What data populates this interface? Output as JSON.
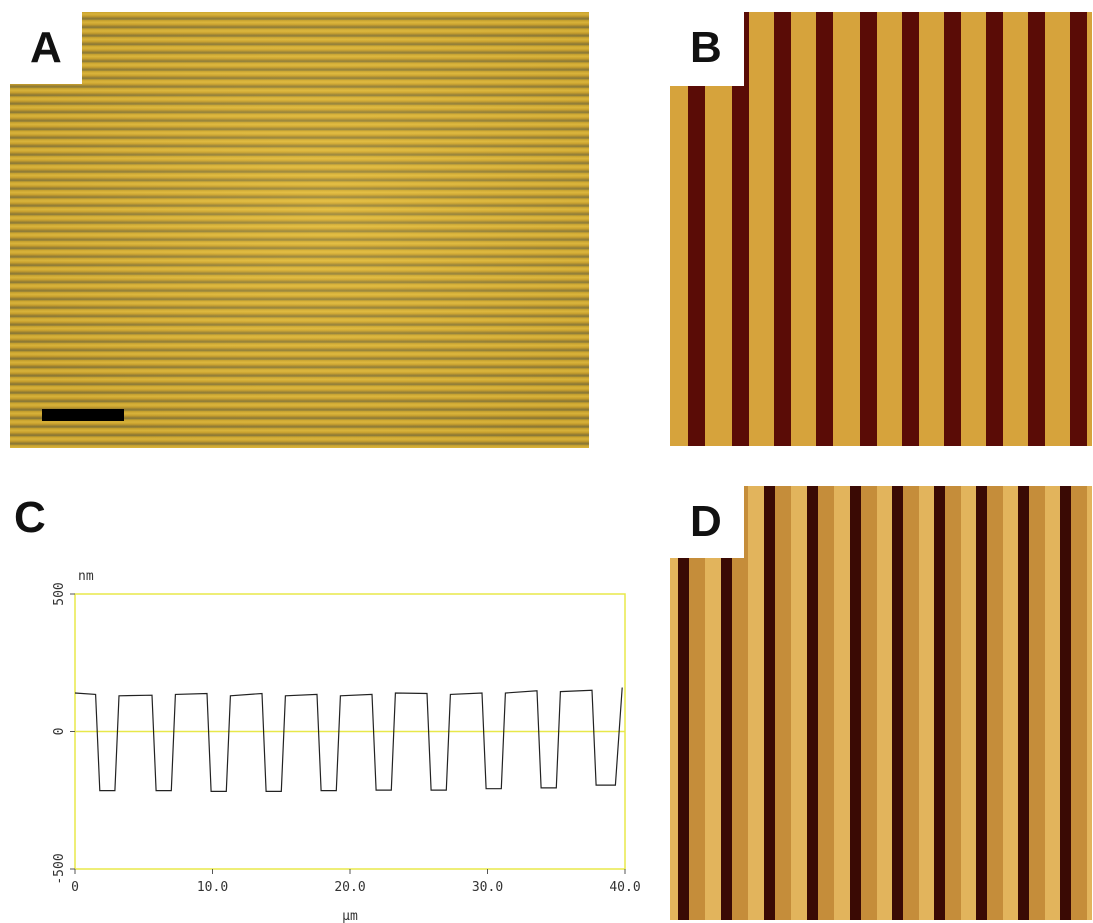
{
  "panels": {
    "a": {
      "label": "A"
    },
    "b": {
      "label": "B"
    },
    "c": {
      "label": "C"
    },
    "d": {
      "label": "D"
    }
  },
  "colors": {
    "gold": "#d6a33c",
    "dark_stripe": "#5a0c06",
    "light_stripe": "#e2b45c",
    "plot_frame": "#e8e84a"
  },
  "chart_data": {
    "type": "line",
    "xlabel": "µm",
    "ylabel": "nm",
    "xlim": [
      0,
      40
    ],
    "ylim": [
      -500,
      500
    ],
    "x_ticks": [
      "0",
      "10.0",
      "20.0",
      "30.0",
      "40.0"
    ],
    "y_ticks": [
      "500",
      "0",
      "-500"
    ],
    "grid": false,
    "zero_line": true,
    "series": [
      {
        "period_um": 4.0,
        "high_nm": 140,
        "low_nm": -215,
        "x": [
          0.0,
          1.5,
          1.8,
          2.9,
          3.2,
          5.6,
          5.9,
          7.0,
          7.3,
          9.6,
          9.9,
          11.0,
          11.3,
          13.6,
          13.9,
          15.0,
          15.3,
          17.6,
          17.9,
          19.0,
          19.3,
          21.6,
          21.9,
          23.0,
          23.3,
          25.6,
          25.9,
          27.0,
          27.3,
          29.6,
          29.9,
          31.0,
          31.3,
          33.6,
          33.9,
          35.0,
          35.3,
          37.6,
          37.9,
          39.0,
          39.3,
          39.8
        ],
        "y": [
          140,
          135,
          -215,
          -215,
          130,
          132,
          -215,
          -215,
          135,
          138,
          -218,
          -218,
          130,
          138,
          -218,
          -218,
          130,
          135,
          -215,
          -215,
          130,
          135,
          -213,
          -213,
          140,
          138,
          -213,
          -213,
          135,
          140,
          -208,
          -208,
          140,
          148,
          -205,
          -205,
          145,
          150,
          -195,
          -195,
          -195,
          160
        ]
      }
    ]
  }
}
